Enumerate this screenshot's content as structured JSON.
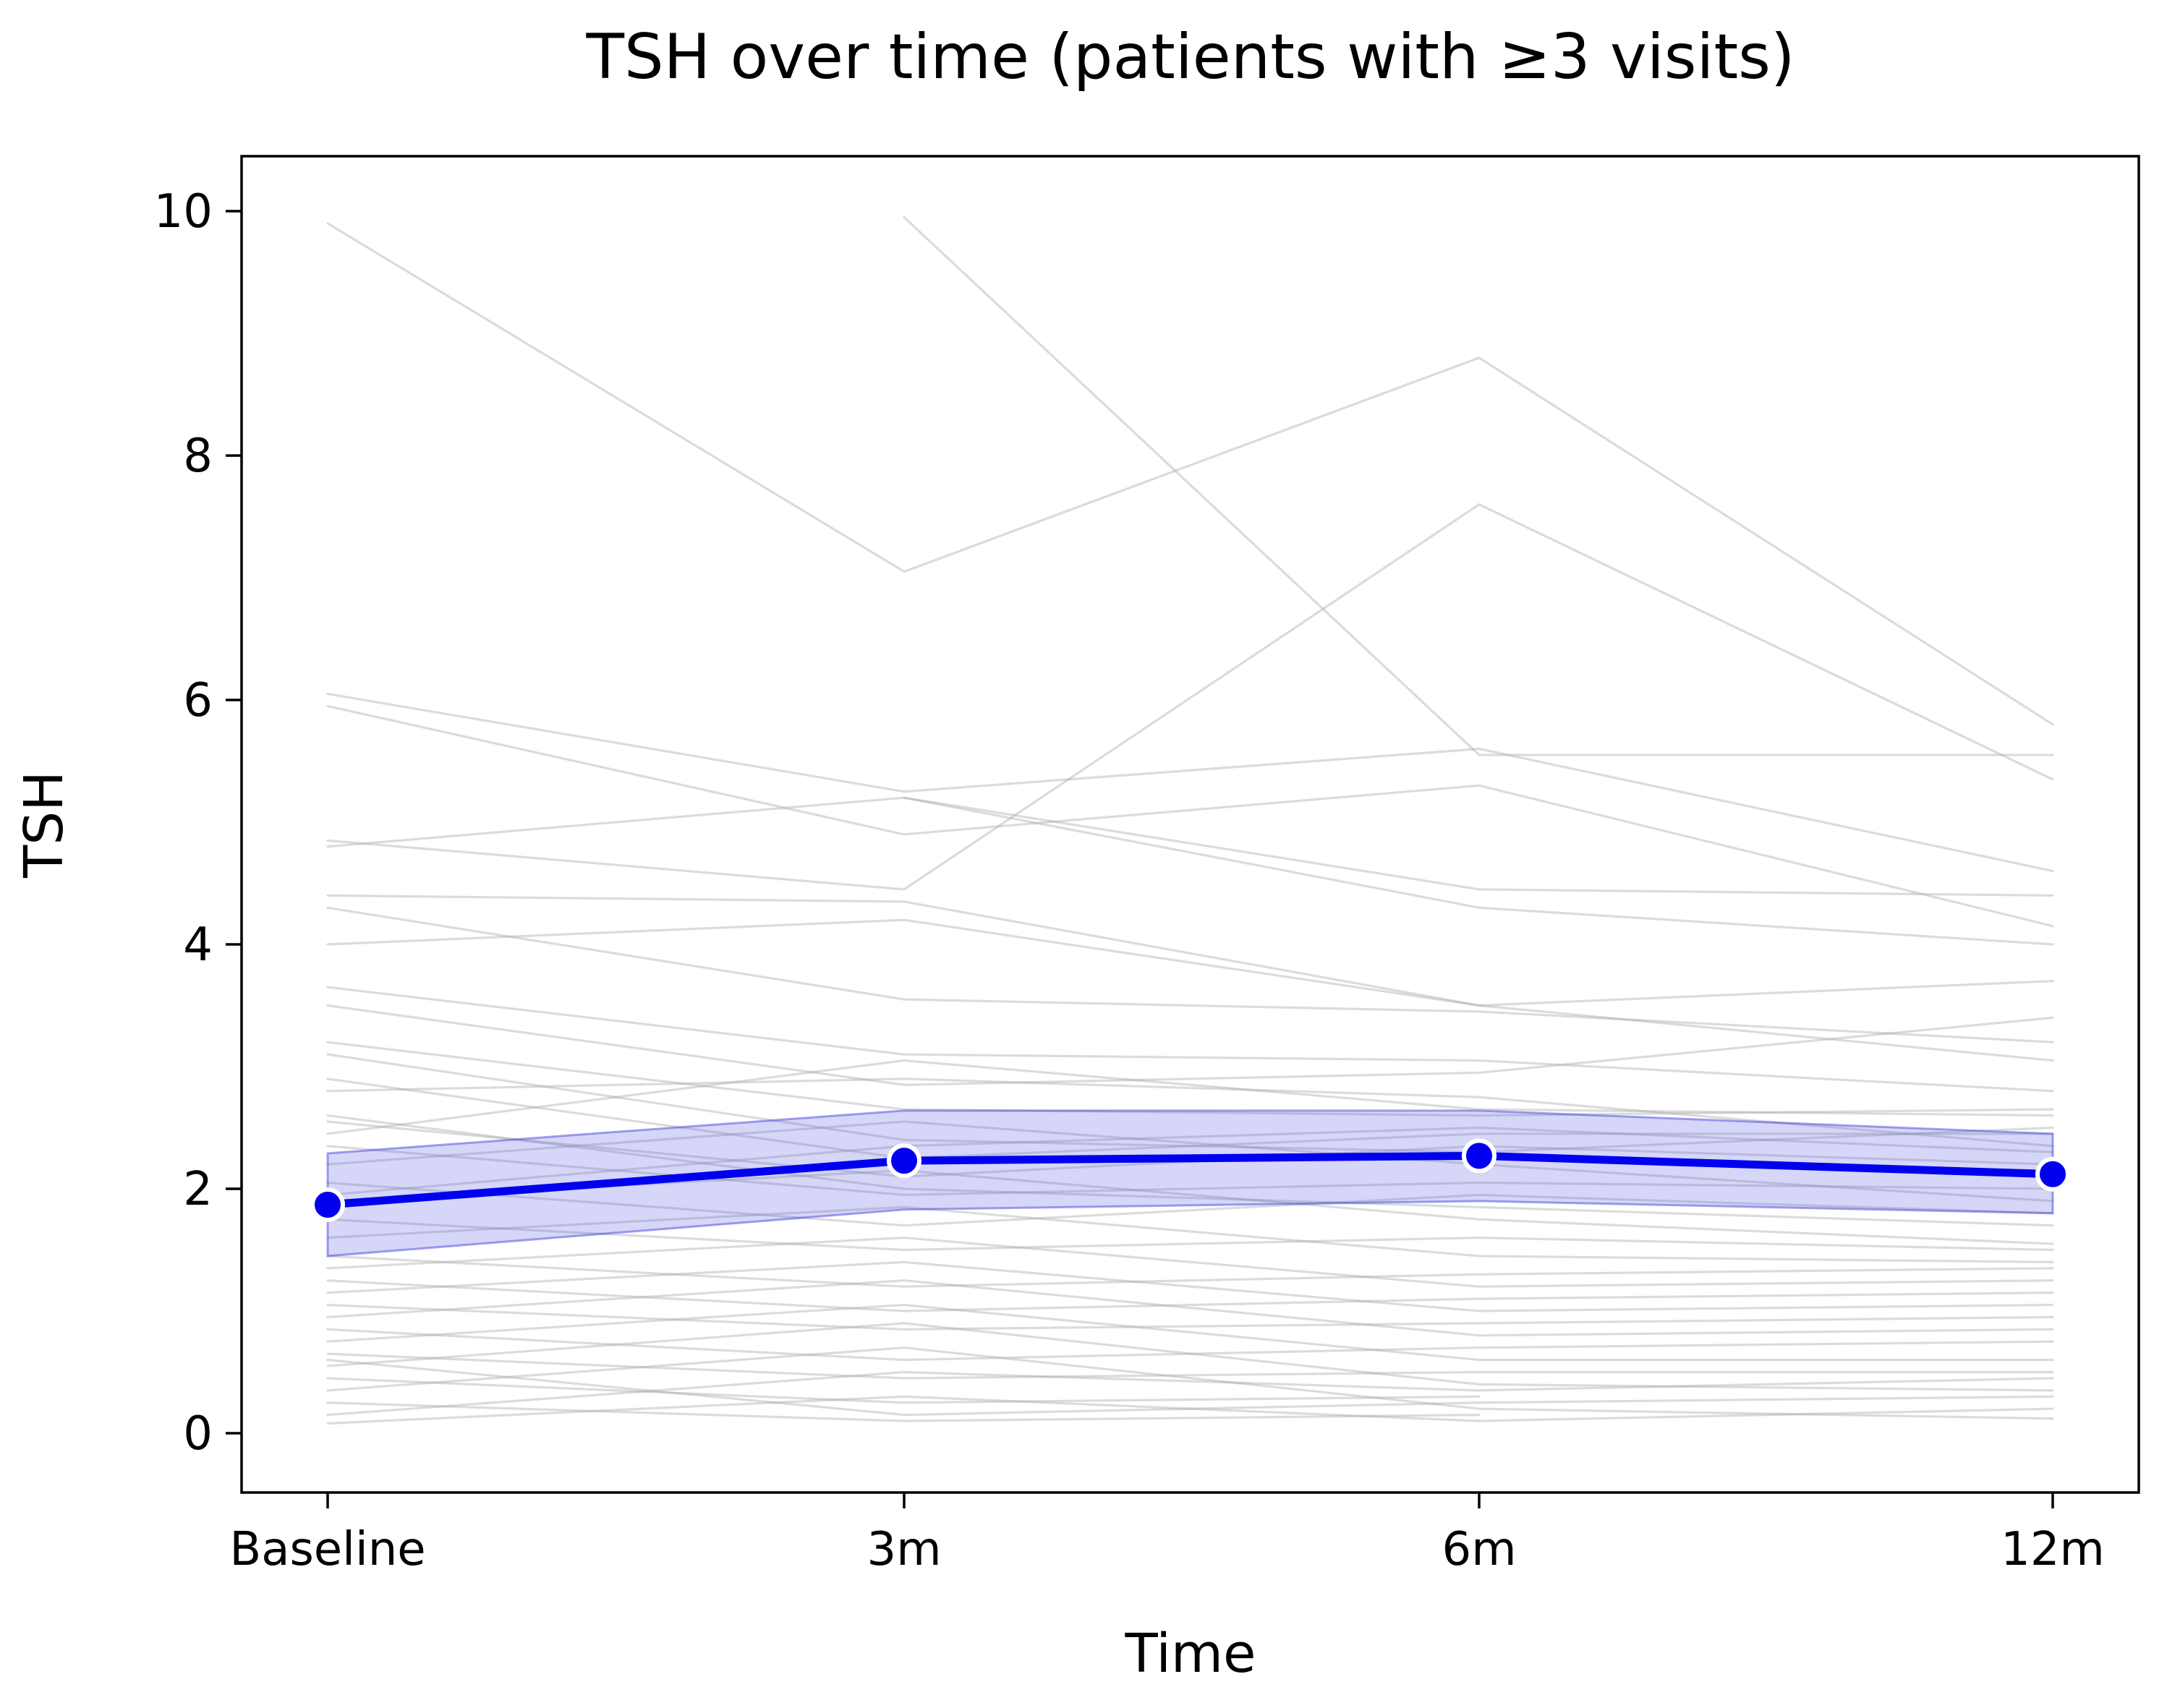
{
  "page": {
    "background": "#ffffff"
  },
  "chart_data": {
    "type": "line",
    "title": "TSH over time (patients with ≥3 visits)",
    "xlabel": "Time",
    "ylabel": "TSH",
    "categories": [
      "Baseline",
      "3m",
      "6m",
      "12m"
    ],
    "yticks": [
      0,
      2,
      4,
      6,
      8,
      10
    ],
    "ylim": [
      -0.49,
      10.45
    ],
    "grid": false,
    "legend_position": "none",
    "mean_series": {
      "name": "mean-tsh-with-ci",
      "values": [
        1.87,
        2.23,
        2.27,
        2.12
      ],
      "ci_low": [
        1.45,
        1.83,
        1.9,
        1.8
      ],
      "ci_high": [
        2.29,
        2.64,
        2.64,
        2.45
      ]
    },
    "individual_series": [
      [
        9.9,
        7.05,
        8.8,
        5.8
      ],
      [
        null,
        9.95,
        5.55,
        5.55
      ],
      [
        4.85,
        4.45,
        7.6,
        5.35
      ],
      [
        6.05,
        5.25,
        5.6,
        4.6
      ],
      [
        5.95,
        4.9,
        5.3,
        4.15
      ],
      [
        4.8,
        5.2,
        4.3,
        4.0
      ],
      [
        null,
        5.2,
        4.45,
        4.4
      ],
      [
        4.4,
        4.35,
        3.5,
        3.7
      ],
      [
        4.3,
        3.55,
        3.45,
        3.2
      ],
      [
        4.0,
        4.2,
        3.5,
        3.05
      ],
      [
        3.65,
        3.1,
        3.05,
        2.8
      ],
      [
        3.5,
        2.85,
        2.95,
        3.4
      ],
      [
        3.2,
        2.65,
        2.6,
        2.65
      ],
      [
        3.1,
        2.4,
        2.3,
        2.5
      ],
      [
        2.9,
        2.25,
        2.45,
        2.45
      ],
      [
        2.8,
        2.9,
        2.75,
        2.35
      ],
      [
        2.6,
        2.0,
        1.85,
        1.7
      ],
      [
        2.55,
        2.1,
        2.35,
        2.2
      ],
      [
        2.45,
        3.05,
        2.65,
        2.6
      ],
      [
        2.35,
        1.95,
        2.05,
        2.0
      ],
      [
        2.2,
        2.55,
        2.2,
        1.9
      ],
      [
        2.05,
        1.7,
        1.95,
        1.8
      ],
      [
        1.95,
        2.35,
        2.5,
        2.3
      ],
      [
        1.9,
        2.15,
        1.75,
        1.55
      ],
      [
        1.75,
        1.5,
        1.6,
        1.5
      ],
      [
        1.6,
        1.85,
        1.45,
        1.4
      ],
      [
        1.45,
        1.2,
        1.3,
        1.35
      ],
      [
        1.35,
        1.6,
        1.2,
        1.25
      ],
      [
        1.25,
        1.0,
        1.1,
        1.15
      ],
      [
        1.15,
        1.4,
        1.0,
        1.05
      ],
      [
        1.05,
        0.85,
        0.9,
        0.95
      ],
      [
        0.95,
        1.25,
        0.8,
        0.85
      ],
      [
        0.85,
        0.6,
        0.7,
        0.75
      ],
      [
        0.75,
        1.05,
        0.6,
        0.6
      ],
      [
        0.65,
        0.45,
        0.5,
        0.5
      ],
      [
        0.6,
        0.15,
        0.25,
        0.3
      ],
      [
        0.55,
        0.9,
        0.4,
        0.35
      ],
      [
        0.45,
        0.25,
        0.3,
        null
      ],
      [
        0.35,
        0.7,
        0.2,
        0.12
      ],
      [
        0.25,
        0.1,
        0.15,
        null
      ],
      [
        0.15,
        0.5,
        0.35,
        0.45
      ],
      [
        0.08,
        0.3,
        0.1,
        0.2
      ]
    ],
    "colors": {
      "mean_line": "#0000ee",
      "marker_fill": "#0000ee",
      "marker_edge": "#ffffff",
      "band_fill": "rgba(70,70,225,0.22)",
      "band_edge": "rgba(70,70,225,0.50)",
      "individual_line": "#aaaaaa",
      "axis": "#000000"
    }
  }
}
